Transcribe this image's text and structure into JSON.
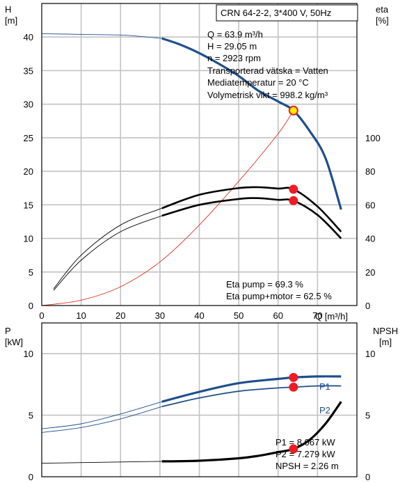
{
  "chart_data": [
    {
      "type": "line",
      "title": "CRN 64-2-2, 3*400 V, 50Hz",
      "xlabel": "Q [m³/h]",
      "ylabel_left": [
        "H",
        "[m]"
      ],
      "ylabel_right": [
        "eta",
        "[%]"
      ],
      "xlim": [
        0,
        80
      ],
      "ylim_left": [
        0,
        45
      ],
      "ylim_right": [
        0,
        180
      ],
      "x_ticks": [
        "0",
        "10",
        "20",
        "30",
        "40",
        "50",
        "60",
        "70"
      ],
      "y_ticks_left": [
        "0",
        "5",
        "10",
        "15",
        "20",
        "25",
        "30",
        "35",
        "40"
      ],
      "y_ticks_right": [
        "0",
        "20",
        "40",
        "60",
        "80",
        "100"
      ],
      "grid": true,
      "info_lines": [
        "Q = 63.9 m³/h",
        "H = 29.05 m",
        "n = 2923 rpm",
        "Transporterad vätska = Vatten",
        "Mediatemperatur = 20 °C",
        "Volymetrisk vikt = 998.2 kg/m³"
      ],
      "eta_lines": [
        "Eta pump = 69.3 %",
        "Eta pump+motor = 62.5 %"
      ],
      "colors": {
        "head": "#1f4e8c",
        "system": "#e03020",
        "eta": "#000000",
        "marker": "#ee1c25",
        "duty": "#ffee00"
      },
      "series": [
        {
          "axis": "left",
          "style": "thin-head",
          "x": [
            0,
            10,
            20,
            25,
            30.5
          ],
          "y": [
            40.5,
            40.4,
            40.3,
            40.1,
            39.8
          ]
        },
        {
          "axis": "left",
          "style": "head",
          "x": [
            30.5,
            35,
            40,
            45,
            50,
            55,
            60,
            63.9,
            68,
            72,
            76
          ],
          "y": [
            39.8,
            38.9,
            37.6,
            36.0,
            34.2,
            32.0,
            30.4,
            29.05,
            26.0,
            22.0,
            14.3
          ]
        },
        {
          "axis": "left",
          "style": "system",
          "x": [
            0,
            10,
            20,
            30,
            40,
            50,
            60,
            63.9
          ],
          "y": [
            0,
            0.8,
            2.8,
            6.5,
            12.0,
            18.5,
            25.6,
            29.05
          ]
        },
        {
          "axis": "right",
          "style": "thin-eta",
          "x": [
            3,
            10,
            20,
            30.5
          ],
          "y": [
            10,
            30,
            48,
            58
          ]
        },
        {
          "axis": "right",
          "style": "eta",
          "x": [
            30.5,
            40,
            50,
            55,
            60,
            63.9,
            70,
            76
          ],
          "y": [
            58,
            66,
            70,
            70.5,
            69.7,
            69.3,
            59,
            44
          ]
        },
        {
          "axis": "right",
          "style": "thin-eta",
          "x": [
            3,
            10,
            20,
            30.5
          ],
          "y": [
            9,
            27,
            44,
            53.5
          ]
        },
        {
          "axis": "right",
          "style": "eta",
          "x": [
            30.5,
            40,
            50,
            55,
            60,
            63.9,
            70,
            76
          ],
          "y": [
            53.5,
            60,
            63.5,
            64,
            63,
            62.5,
            54,
            40
          ]
        }
      ],
      "markers": [
        {
          "axis": "left",
          "x": 63.9,
          "y": 29.05,
          "kind": "duty"
        },
        {
          "axis": "right",
          "x": 63.9,
          "y": 69.3,
          "kind": "point"
        },
        {
          "axis": "right",
          "x": 63.9,
          "y": 62.5,
          "kind": "point"
        }
      ]
    },
    {
      "type": "line",
      "ylabel_left": [
        "P",
        "[kW]"
      ],
      "ylabel_right": [
        "NPSH",
        "[m]"
      ],
      "xlim": [
        0,
        80
      ],
      "ylim_left": [
        0,
        12.5
      ],
      "ylim_right": [
        0,
        12.5
      ],
      "y_ticks_left": [
        "0",
        "5",
        "10"
      ],
      "y_ticks_right": [
        "0",
        "5",
        "10"
      ],
      "grid": true,
      "series_labels": [
        "P1",
        "P2"
      ],
      "info_lines": [
        "P1 = 8.067 kW",
        "P2 = 7.279 kW",
        "NPSH = 2.26 m"
      ],
      "series": [
        {
          "axis": "left",
          "style": "thin-power",
          "x": [
            0,
            10,
            20,
            30.5
          ],
          "y": [
            3.9,
            4.3,
            5.1,
            6.1
          ]
        },
        {
          "axis": "left",
          "style": "power",
          "x": [
            30.5,
            40,
            50,
            60,
            63.9,
            70,
            76
          ],
          "y": [
            6.1,
            6.9,
            7.6,
            7.95,
            8.067,
            8.15,
            8.15
          ]
        },
        {
          "axis": "left",
          "style": "thin-power",
          "x": [
            0,
            10,
            20,
            30.5
          ],
          "y": [
            3.6,
            4.0,
            4.7,
            5.7
          ]
        },
        {
          "axis": "left",
          "style": "power2",
          "x": [
            30.5,
            40,
            50,
            60,
            63.9,
            70,
            76
          ],
          "y": [
            5.7,
            6.4,
            6.95,
            7.22,
            7.279,
            7.38,
            7.38
          ]
        },
        {
          "axis": "right",
          "style": "thin-npsh",
          "x": [
            0,
            10,
            20,
            30.5
          ],
          "y": [
            1.1,
            1.15,
            1.2,
            1.25
          ]
        },
        {
          "axis": "right",
          "style": "npsh",
          "x": [
            30.5,
            40,
            50,
            55,
            60,
            63.9,
            68,
            72,
            76
          ],
          "y": [
            1.25,
            1.3,
            1.5,
            1.7,
            2.0,
            2.26,
            3.0,
            4.3,
            6.1
          ]
        }
      ],
      "markers": [
        {
          "axis": "left",
          "x": 63.9,
          "y": 8.067,
          "kind": "point"
        },
        {
          "axis": "left",
          "x": 63.9,
          "y": 7.279,
          "kind": "point"
        },
        {
          "axis": "right",
          "x": 63.9,
          "y": 2.26,
          "kind": "point"
        }
      ]
    }
  ]
}
